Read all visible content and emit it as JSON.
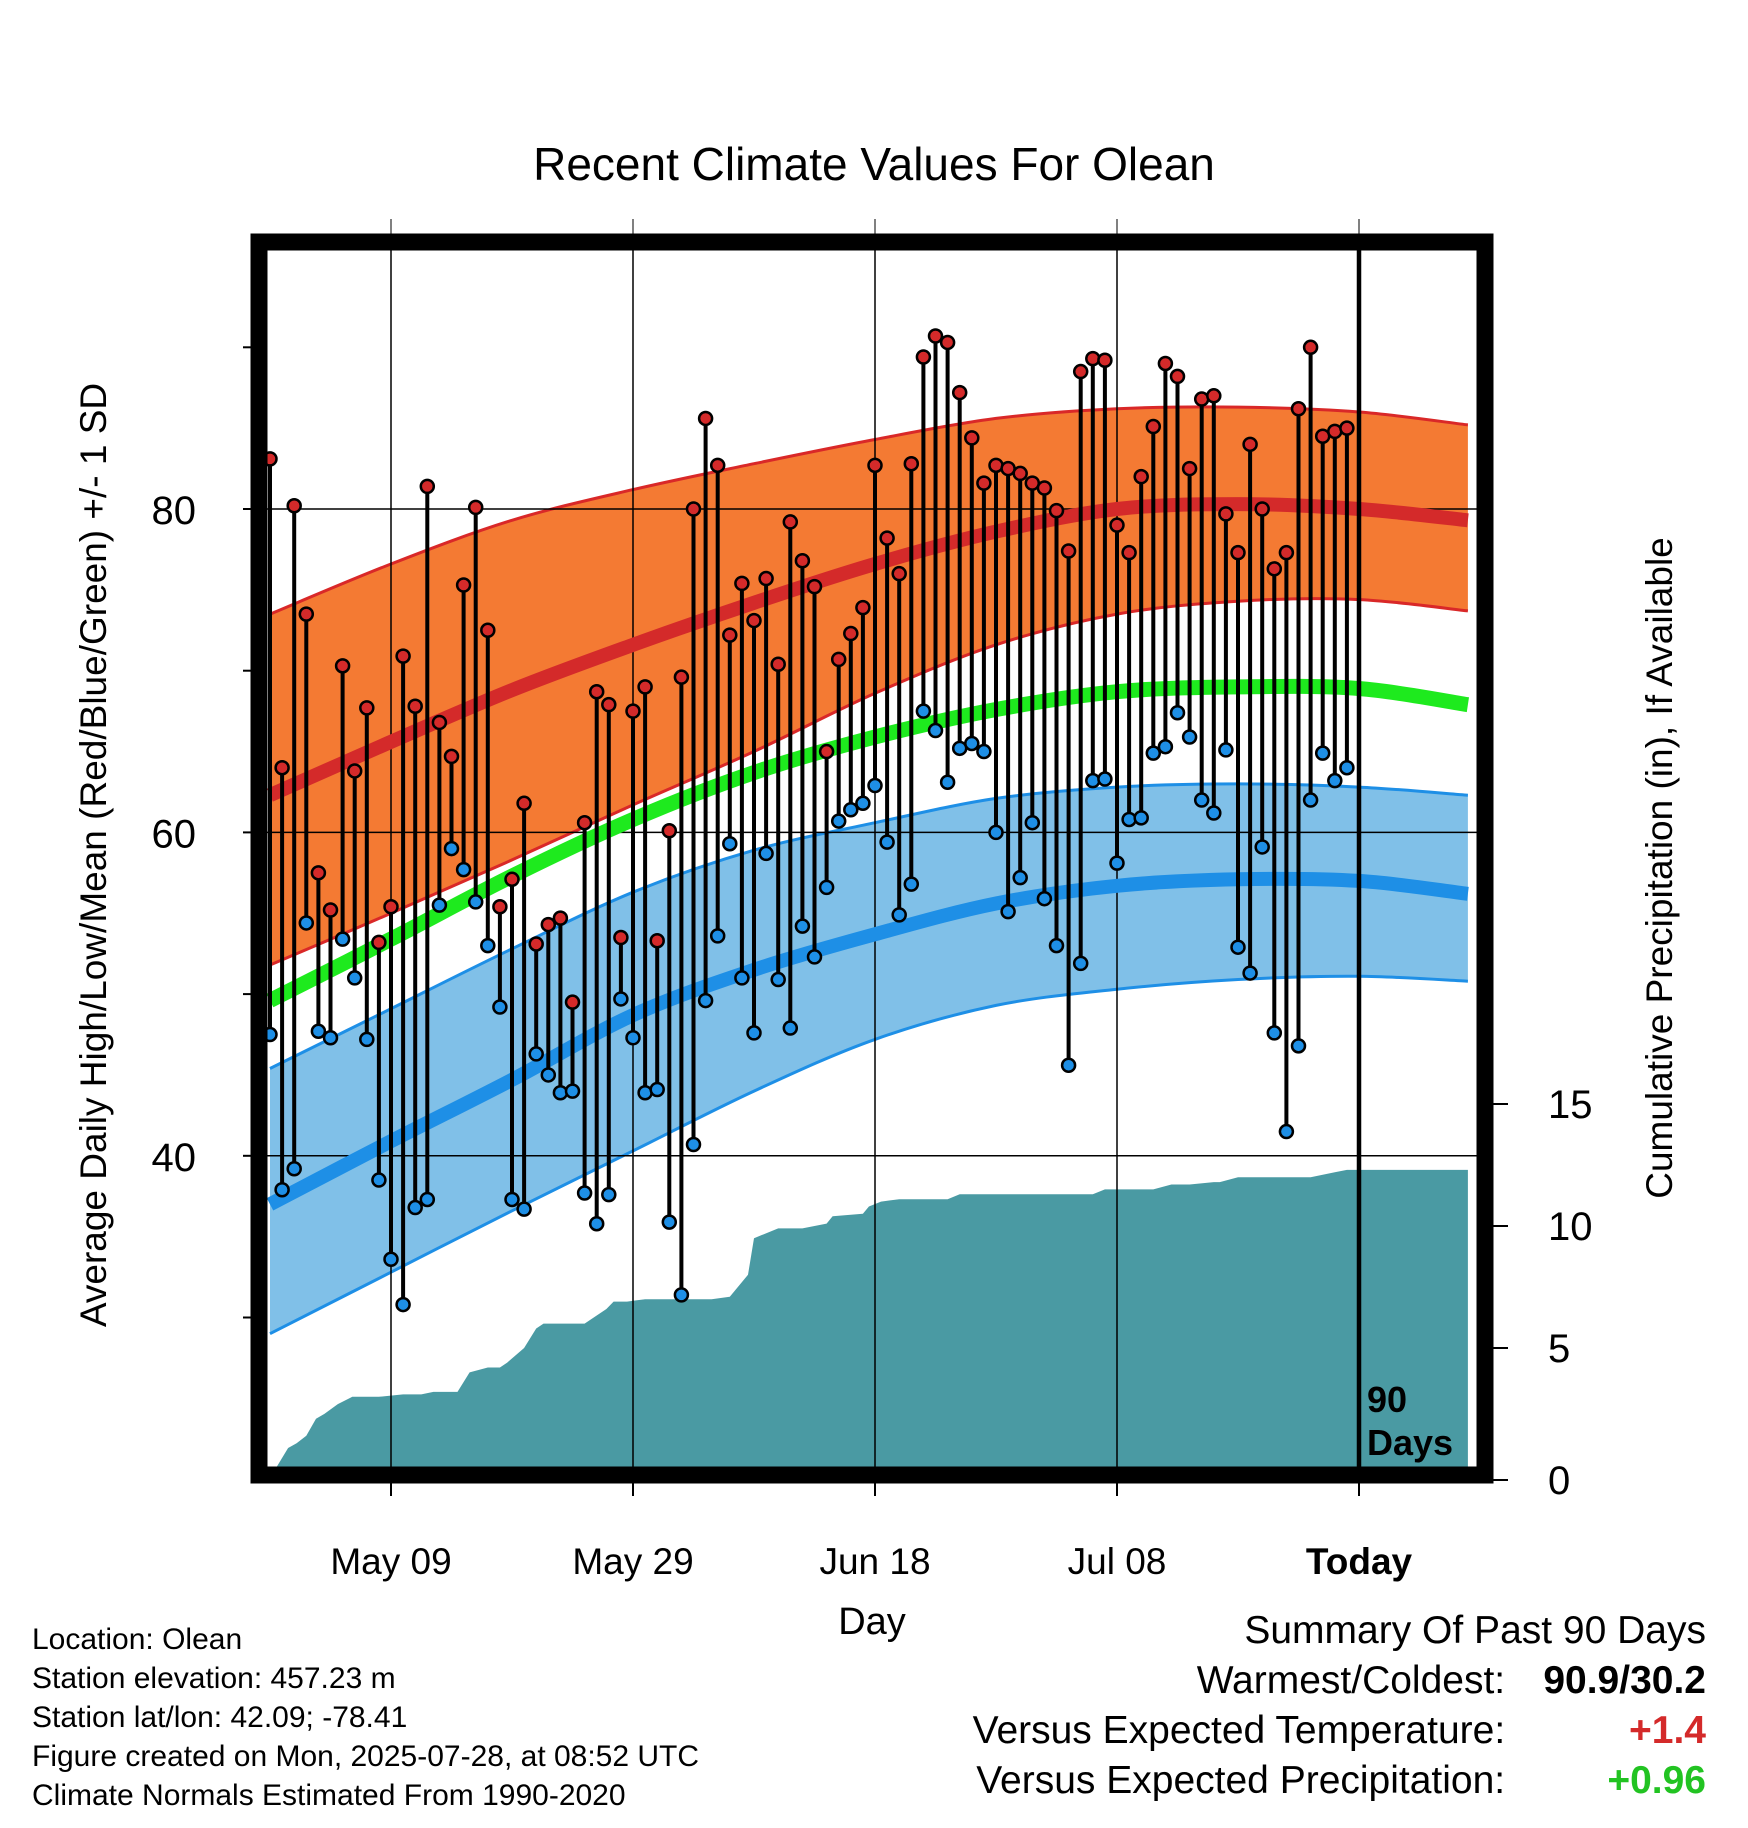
{
  "chart_data": {
    "type": "line",
    "title": "Recent Climate Values For Olean",
    "xlabel": "Day",
    "ylabel": "Average Daily High/Low/Mean (Red/Blue/Green) +/- 1 SD",
    "y2label": "Cumulative Precipitation (in), If Available",
    "x_tick_labels": [
      "May 09",
      "May 29",
      "Jun 18",
      "Jul 08",
      "Today"
    ],
    "x_tick_days": [
      10,
      30,
      50,
      70,
      90
    ],
    "y_ticks": [
      40,
      60,
      80
    ],
    "ylim": [
      20,
      96
    ],
    "y2_ticks": [
      0,
      5,
      10,
      15
    ],
    "y2lim": [
      0,
      36
    ],
    "grid": true,
    "today_marker": {
      "day": 90,
      "label_line1": "90",
      "label_line2": "Days"
    },
    "normals": {
      "days": [
        0,
        10,
        20,
        30,
        40,
        50,
        60,
        70,
        80,
        90,
        99
      ],
      "high_mean": [
        62.3,
        65.6,
        68.8,
        71.6,
        74.2,
        76.6,
        78.6,
        80.0,
        80.3,
        80.0,
        79.3
      ],
      "high_upper": [
        73.5,
        76.6,
        79.3,
        81.2,
        82.8,
        84.3,
        85.6,
        86.2,
        86.3,
        86.0,
        85.2
      ],
      "high_lower": [
        51.8,
        55.0,
        58.3,
        61.7,
        65.0,
        68.6,
        71.6,
        73.5,
        74.3,
        74.4,
        73.7
      ],
      "mean": [
        49.6,
        53.4,
        57.3,
        60.8,
        63.7,
        65.9,
        67.6,
        68.7,
        69.0,
        68.9,
        67.9
      ],
      "low_mean": [
        37.0,
        40.9,
        44.7,
        48.7,
        51.5,
        53.7,
        55.6,
        56.7,
        57.1,
        57.0,
        56.2
      ],
      "low_upper": [
        45.4,
        49.1,
        52.8,
        56.3,
        58.9,
        60.6,
        62.1,
        62.8,
        63.0,
        62.8,
        62.3
      ],
      "low_lower": [
        29.0,
        32.8,
        36.6,
        40.3,
        44.0,
        47.2,
        49.3,
        50.3,
        50.9,
        51.1,
        50.8
      ]
    },
    "series": [
      {
        "name": "Daily High",
        "color": "#d42a2a",
        "values": [
          83.1,
          64.0,
          80.2,
          73.5,
          57.5,
          55.2,
          70.3,
          63.8,
          67.7,
          53.2,
          55.4,
          70.9,
          67.8,
          81.4,
          66.8,
          64.7,
          75.3,
          80.1,
          72.5,
          55.4,
          57.1,
          61.8,
          53.1,
          54.3,
          54.7,
          49.5,
          60.6,
          68.7,
          67.9,
          53.5,
          67.5,
          69.0,
          53.3,
          60.1,
          69.6,
          80.0,
          85.6,
          82.7,
          72.2,
          75.4,
          73.1,
          75.7,
          70.4,
          79.2,
          76.8,
          75.2,
          65.0,
          70.7,
          72.3,
          73.9,
          82.7,
          78.2,
          76.0,
          82.8,
          89.4,
          90.7,
          90.3,
          87.2,
          84.4,
          81.6,
          82.7,
          82.5,
          82.2,
          81.6,
          81.3,
          79.9,
          77.4,
          88.5,
          89.3,
          89.2,
          79.0,
          77.3,
          82.0,
          85.1,
          89.0,
          88.2,
          82.5,
          86.8,
          87.0,
          79.7,
          77.3,
          84.0,
          80.0,
          76.3,
          77.3,
          86.2,
          90.0,
          84.5,
          84.8,
          85.0
        ]
      },
      {
        "name": "Daily Low",
        "color": "#1e8fe6",
        "values": [
          47.5,
          37.9,
          39.2,
          54.4,
          47.7,
          47.3,
          53.4,
          51.0,
          47.2,
          38.5,
          33.6,
          30.8,
          36.8,
          37.3,
          55.5,
          59.0,
          57.7,
          55.7,
          53.0,
          49.2,
          37.3,
          36.7,
          46.3,
          45.0,
          43.9,
          44.0,
          37.7,
          35.8,
          37.6,
          49.7,
          47.3,
          43.9,
          44.1,
          35.9,
          31.4,
          40.7,
          49.6,
          53.6,
          59.3,
          51.0,
          47.6,
          58.7,
          50.9,
          47.9,
          54.2,
          52.3,
          56.6,
          60.7,
          61.4,
          61.8,
          62.9,
          59.4,
          54.9,
          56.8,
          67.5,
          66.3,
          63.1,
          65.2,
          65.5,
          65.0,
          60.0,
          55.1,
          57.2,
          60.6,
          55.9,
          53.0,
          45.6,
          51.9,
          63.2,
          63.3,
          58.1,
          60.8,
          60.9,
          64.9,
          65.3,
          67.4,
          65.9,
          62.0,
          61.2,
          65.1,
          52.9,
          51.3,
          59.1,
          47.6,
          41.5,
          46.8,
          62.0,
          64.9,
          63.2,
          64.0
        ]
      }
    ],
    "precip": {
      "color": "#4a9aa3",
      "days": [
        0.4,
        1.5,
        2.2,
        3.0,
        3.8,
        4.5,
        5.6,
        6.8,
        7.5,
        8.5,
        9.0,
        11.0,
        12.5,
        13.5,
        14.5,
        15.5,
        16.5,
        18.0,
        19.0,
        19.6,
        21.0,
        22.0,
        22.6,
        23.0,
        24.5,
        26.0,
        27.8,
        28.4,
        29.5,
        31.0,
        33.5,
        35.5,
        36.5,
        38.0,
        39.5,
        40.0,
        42.0,
        44.0,
        46.0,
        46.5,
        49.0,
        49.5,
        50.5,
        52.0,
        56.0,
        57.0,
        60.0,
        61.5,
        68.0,
        69.0,
        73.0,
        74.5,
        76.0,
        78.0,
        78.5,
        80.0,
        82.5,
        84.0,
        85.5,
        86.0,
        87.0,
        88.0,
        89.0,
        99.0
      ],
      "values": [
        0.0,
        0.9,
        1.1,
        1.4,
        2.1,
        2.3,
        2.7,
        3.0,
        3.0,
        3.0,
        3.0,
        3.1,
        3.1,
        3.2,
        3.2,
        3.2,
        4.0,
        4.2,
        4.2,
        4.4,
        5.0,
        5.8,
        6.0,
        6.0,
        6.0,
        6.0,
        6.6,
        6.9,
        6.9,
        7.0,
        7.0,
        7.0,
        7.0,
        7.1,
        8.0,
        9.5,
        9.9,
        9.9,
        10.1,
        10.4,
        10.5,
        10.8,
        11.0,
        11.1,
        11.1,
        11.3,
        11.3,
        11.3,
        11.3,
        11.5,
        11.5,
        11.7,
        11.7,
        11.8,
        11.8,
        12.0,
        12.0,
        12.0,
        12.0,
        12.0,
        12.1,
        12.2,
        12.3,
        12.3
      ]
    }
  },
  "info": {
    "location": "Location: Olean",
    "elevation": "Station elevation: 457.23 m",
    "latlon": "Station lat/lon: 42.09; -78.41",
    "created": "Figure created on Mon, 2025-07-28, at 08:52 UTC",
    "normals": "Climate Normals Estimated From 1990-2020"
  },
  "summary": {
    "heading": "Summary Of Past 90 Days",
    "warm_cold_label": "Warmest/Coldest:",
    "warm_cold_value": "90.9/30.2",
    "temp_label": "Versus Expected Temperature:",
    "temp_value": "+1.4",
    "precip_label": "Versus Expected Precipitation:",
    "precip_value": "+0.96"
  }
}
